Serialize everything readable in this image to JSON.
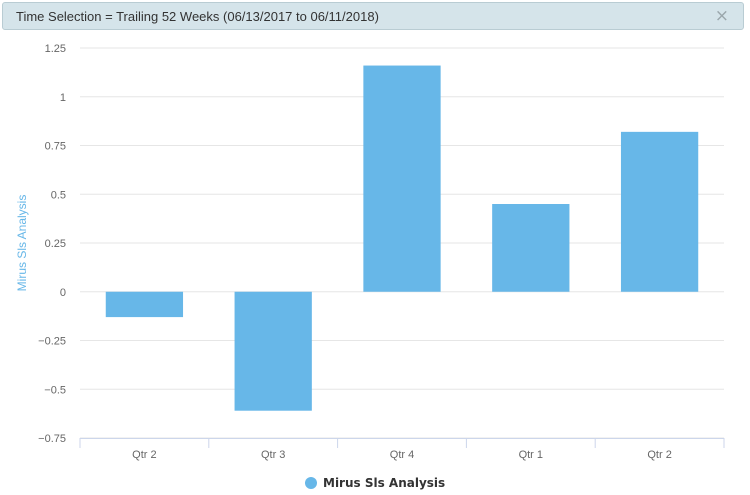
{
  "banner": {
    "text": "Time Selection = Trailing 52 Weeks (06/13/2017 to 06/11/2018)",
    "close_icon": "×"
  },
  "chart_data": {
    "type": "bar",
    "title": "",
    "xlabel": "",
    "ylabel": "Mirus Sls Analysis",
    "categories": [
      "Qtr 2",
      "Qtr 3",
      "Qtr 4",
      "Qtr 1",
      "Qtr 2"
    ],
    "series": [
      {
        "name": "Mirus Sls Analysis",
        "values": [
          -0.13,
          -0.61,
          1.16,
          0.45,
          0.82
        ],
        "color": "#67b7e8"
      }
    ],
    "ylim": [
      -0.75,
      1.25
    ],
    "yticks": [
      1.25,
      1,
      0.75,
      0.5,
      0.25,
      0,
      -0.25,
      -0.5,
      -0.75
    ],
    "ytick_labels": [
      "1.25",
      "1",
      "0.75",
      "0.5",
      "0.25",
      "0",
      "−0.25",
      "−0.5",
      "−0.75"
    ],
    "grid": true,
    "legend_position": "bottom-center",
    "colors": {
      "axis_label": "#67b7e8",
      "tick_label": "#666666",
      "grid": "#e6e6e6",
      "axis_line": "#ccd6eb"
    }
  }
}
